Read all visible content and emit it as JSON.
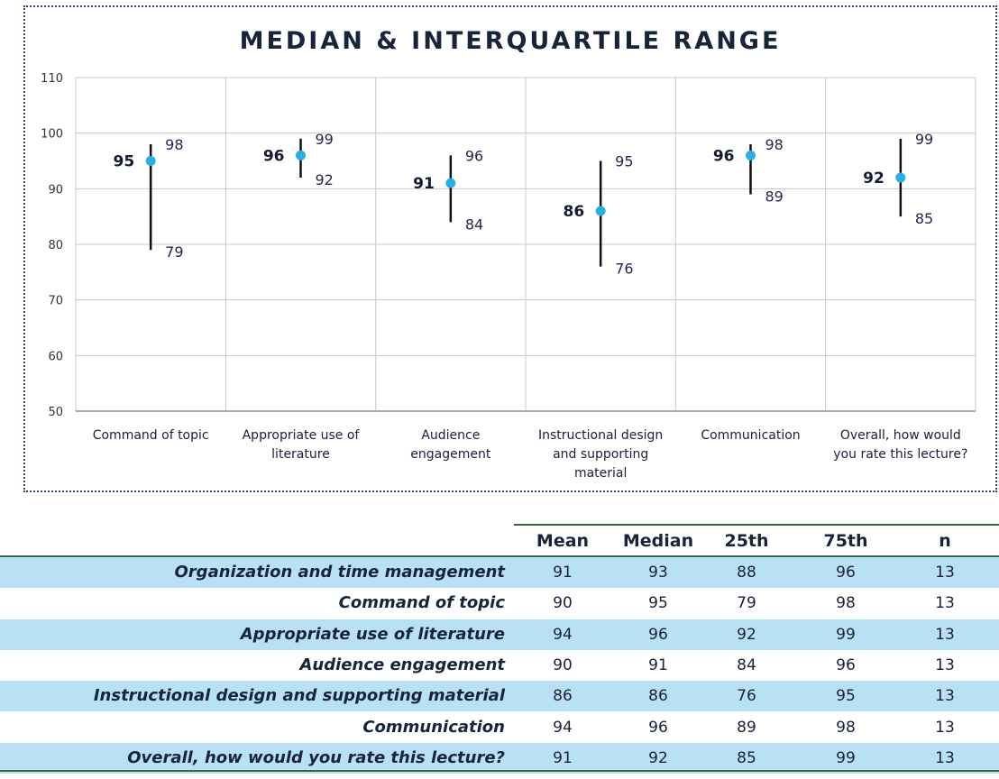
{
  "chart_data": {
    "type": "scatter",
    "title": "MEDIAN & INTERQUARTILE RANGE",
    "xlabel": "",
    "ylabel": "",
    "ylim": [
      50,
      110
    ],
    "yticks": [
      50,
      60,
      70,
      80,
      90,
      100,
      110
    ],
    "grid": true,
    "legend": "none",
    "categories": [
      [
        "Command of topic"
      ],
      [
        "Appropriate use of",
        "literature"
      ],
      [
        "Audience",
        "engagement"
      ],
      [
        "Instructional design",
        "and supporting",
        "material"
      ],
      [
        "Communication"
      ],
      [
        "Overall, how would",
        "you rate this lecture?"
      ]
    ],
    "series": [
      {
        "name": "Median",
        "values": [
          95,
          96,
          91,
          86,
          96,
          92
        ]
      },
      {
        "name": "25th",
        "values": [
          79,
          92,
          84,
          76,
          89,
          85
        ]
      },
      {
        "name": "75th",
        "values": [
          98,
          99,
          96,
          95,
          98,
          99
        ]
      }
    ],
    "colors": {
      "median_marker": "#2aaee6",
      "whisker": "#111111"
    }
  },
  "table": {
    "columns": [
      "Mean",
      "Median",
      "25th",
      "75th",
      "n"
    ],
    "rows": [
      {
        "label": "Organization and time management",
        "mean": "91",
        "median": "93",
        "p25": "88",
        "p75": "96",
        "n": "13"
      },
      {
        "label": "Command of topic",
        "mean": "90",
        "median": "95",
        "p25": "79",
        "p75": "98",
        "n": "13"
      },
      {
        "label": "Appropriate use of literature",
        "mean": "94",
        "median": "96",
        "p25": "92",
        "p75": "99",
        "n": "13"
      },
      {
        "label": "Audience engagement",
        "mean": "90",
        "median": "91",
        "p25": "84",
        "p75": "96",
        "n": "13"
      },
      {
        "label": "Instructional design and supporting material",
        "mean": "86",
        "median": "86",
        "p25": "76",
        "p75": "95",
        "n": "13"
      },
      {
        "label": "Communication",
        "mean": "94",
        "median": "96",
        "p25": "89",
        "p75": "98",
        "n": "13"
      },
      {
        "label": "Overall, how would you rate this lecture?",
        "mean": "91",
        "median": "92",
        "p25": "85",
        "p75": "99",
        "n": "13"
      }
    ],
    "colors": {
      "shaded_row": "#b9e1f4",
      "rule": "#2f6b3f"
    }
  }
}
